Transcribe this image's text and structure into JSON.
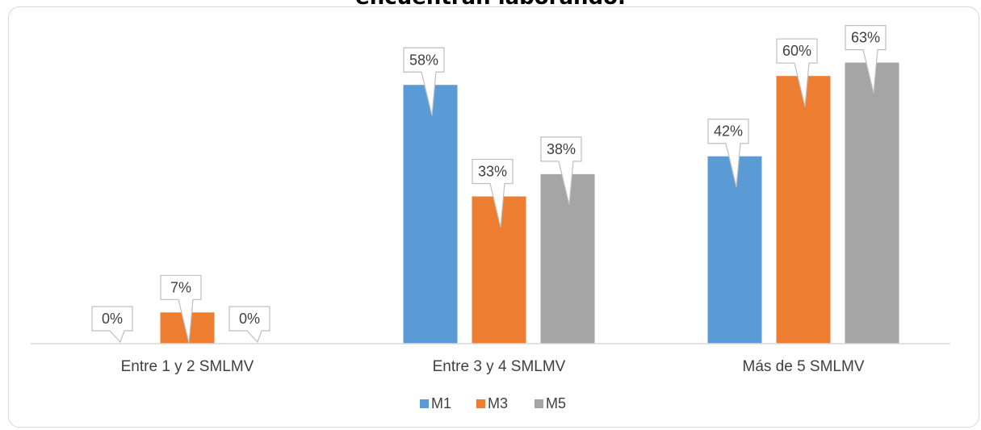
{
  "chart_data": {
    "type": "bar",
    "title": "encuentran laborando.",
    "categories": [
      "Entre 1 y 2 SMLMV",
      "Entre 3 y 4 SMLMV",
      "Más de 5 SMLMV"
    ],
    "series": [
      {
        "name": "M1",
        "color": "#5b9bd5",
        "values": [
          0,
          58,
          42
        ],
        "labels": [
          "0%",
          "58%",
          "42%"
        ]
      },
      {
        "name": "M3",
        "color": "#ed7d31",
        "values": [
          7,
          33,
          60
        ],
        "labels": [
          "7%",
          "33%",
          "60%"
        ]
      },
      {
        "name": "M5",
        "color": "#a5a5a5",
        "values": [
          0,
          38,
          63
        ],
        "labels": [
          "0%",
          "38%",
          "63%"
        ]
      }
    ],
    "ylim": [
      0,
      65
    ],
    "grid": false,
    "legend_position": "bottom"
  }
}
